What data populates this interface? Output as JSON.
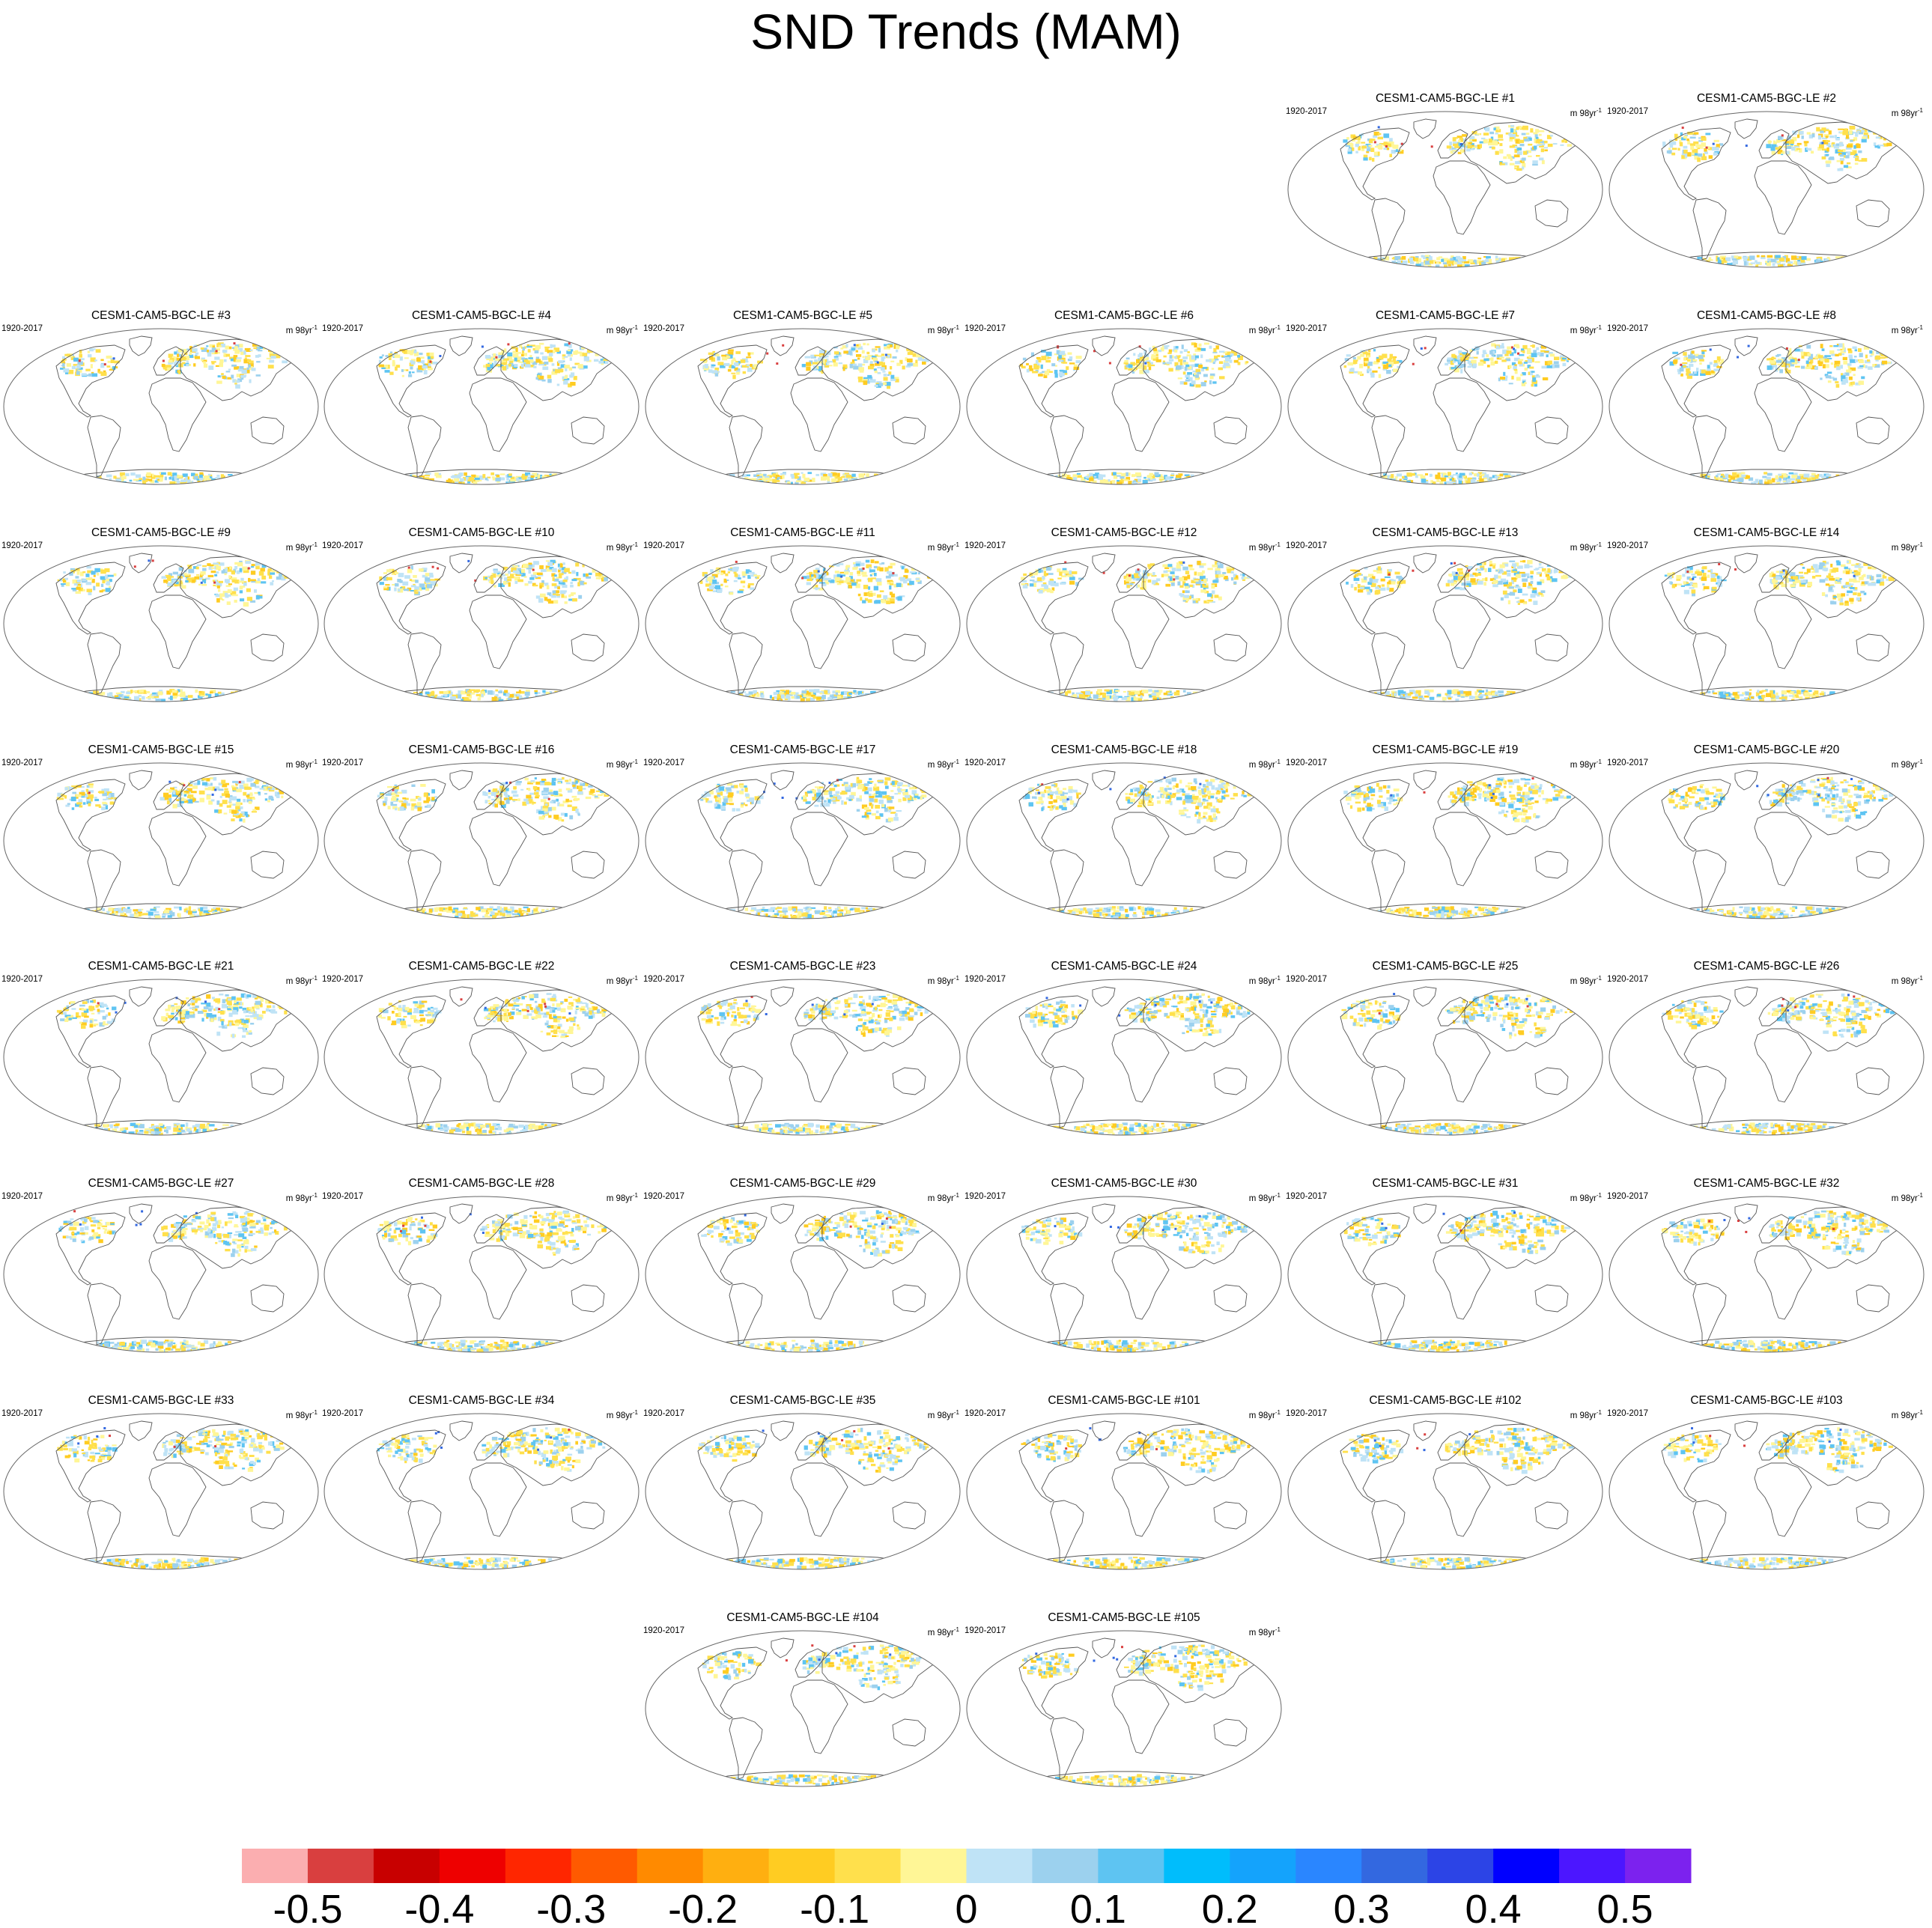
{
  "title": "SND Trends (MAM)",
  "panel_period": "1920-2017",
  "panel_units_base": "m 98yr",
  "panel_units_sup": "-1",
  "panels": [
    {
      "label": "CESM1-CAM5-BGC-LE #1"
    },
    {
      "label": "CESM1-CAM5-BGC-LE #2"
    },
    {
      "label": "CESM1-CAM5-BGC-LE #3"
    },
    {
      "label": "CESM1-CAM5-BGC-LE #4"
    },
    {
      "label": "CESM1-CAM5-BGC-LE #5"
    },
    {
      "label": "CESM1-CAM5-BGC-LE #6"
    },
    {
      "label": "CESM1-CAM5-BGC-LE #7"
    },
    {
      "label": "CESM1-CAM5-BGC-LE #8"
    },
    {
      "label": "CESM1-CAM5-BGC-LE #9"
    },
    {
      "label": "CESM1-CAM5-BGC-LE #10"
    },
    {
      "label": "CESM1-CAM5-BGC-LE #11"
    },
    {
      "label": "CESM1-CAM5-BGC-LE #12"
    },
    {
      "label": "CESM1-CAM5-BGC-LE #13"
    },
    {
      "label": "CESM1-CAM5-BGC-LE #14"
    },
    {
      "label": "CESM1-CAM5-BGC-LE #15"
    },
    {
      "label": "CESM1-CAM5-BGC-LE #16"
    },
    {
      "label": "CESM1-CAM5-BGC-LE #17"
    },
    {
      "label": "CESM1-CAM5-BGC-LE #18"
    },
    {
      "label": "CESM1-CAM5-BGC-LE #19"
    },
    {
      "label": "CESM1-CAM5-BGC-LE #20"
    },
    {
      "label": "CESM1-CAM5-BGC-LE #21"
    },
    {
      "label": "CESM1-CAM5-BGC-LE #22"
    },
    {
      "label": "CESM1-CAM5-BGC-LE #23"
    },
    {
      "label": "CESM1-CAM5-BGC-LE #24"
    },
    {
      "label": "CESM1-CAM5-BGC-LE #25"
    },
    {
      "label": "CESM1-CAM5-BGC-LE #26"
    },
    {
      "label": "CESM1-CAM5-BGC-LE #27"
    },
    {
      "label": "CESM1-CAM5-BGC-LE #28"
    },
    {
      "label": "CESM1-CAM5-BGC-LE #29"
    },
    {
      "label": "CESM1-CAM5-BGC-LE #30"
    },
    {
      "label": "CESM1-CAM5-BGC-LE #31"
    },
    {
      "label": "CESM1-CAM5-BGC-LE #32"
    },
    {
      "label": "CESM1-CAM5-BGC-LE #33"
    },
    {
      "label": "CESM1-CAM5-BGC-LE #34"
    },
    {
      "label": "CESM1-CAM5-BGC-LE #35"
    },
    {
      "label": "CESM1-CAM5-BGC-LE #101"
    },
    {
      "label": "CESM1-CAM5-BGC-LE #102"
    },
    {
      "label": "CESM1-CAM5-BGC-LE #103"
    },
    {
      "label": "CESM1-CAM5-BGC-LE #104"
    },
    {
      "label": "CESM1-CAM5-BGC-LE #105"
    }
  ],
  "chart_data": {
    "type": "heatmap",
    "title": "SND Trends (MAM)",
    "projection": "robinson",
    "colorbar": {
      "orientation": "horizontal",
      "position": "bottom",
      "tick_labels": [
        "-0.5",
        "-0.4",
        "-0.3",
        "-0.2",
        "-0.1",
        "0",
        "0.1",
        "0.2",
        "0.3",
        "0.4",
        "0.5"
      ],
      "bins": [
        {
          "color": "#fbaeb0"
        },
        {
          "color": "#d93f3f"
        },
        {
          "color": "#c80000"
        },
        {
          "color": "#ee0000"
        },
        {
          "color": "#ff2600"
        },
        {
          "color": "#ff5a00"
        },
        {
          "color": "#ff8a00"
        },
        {
          "color": "#ffaf10"
        },
        {
          "color": "#ffcc22"
        },
        {
          "color": "#ffe04c"
        },
        {
          "color": "#fff696"
        },
        {
          "color": "#bfe3f6"
        },
        {
          "color": "#9cd1ee"
        },
        {
          "color": "#5ec4f2"
        },
        {
          "color": "#00bdfc"
        },
        {
          "color": "#14a3fc"
        },
        {
          "color": "#2a86ff"
        },
        {
          "color": "#3368e0"
        },
        {
          "color": "#2c44e6"
        },
        {
          "color": "#0000ff"
        },
        {
          "color": "#4c16ff"
        },
        {
          "color": "#7c22ee"
        }
      ]
    }
  }
}
